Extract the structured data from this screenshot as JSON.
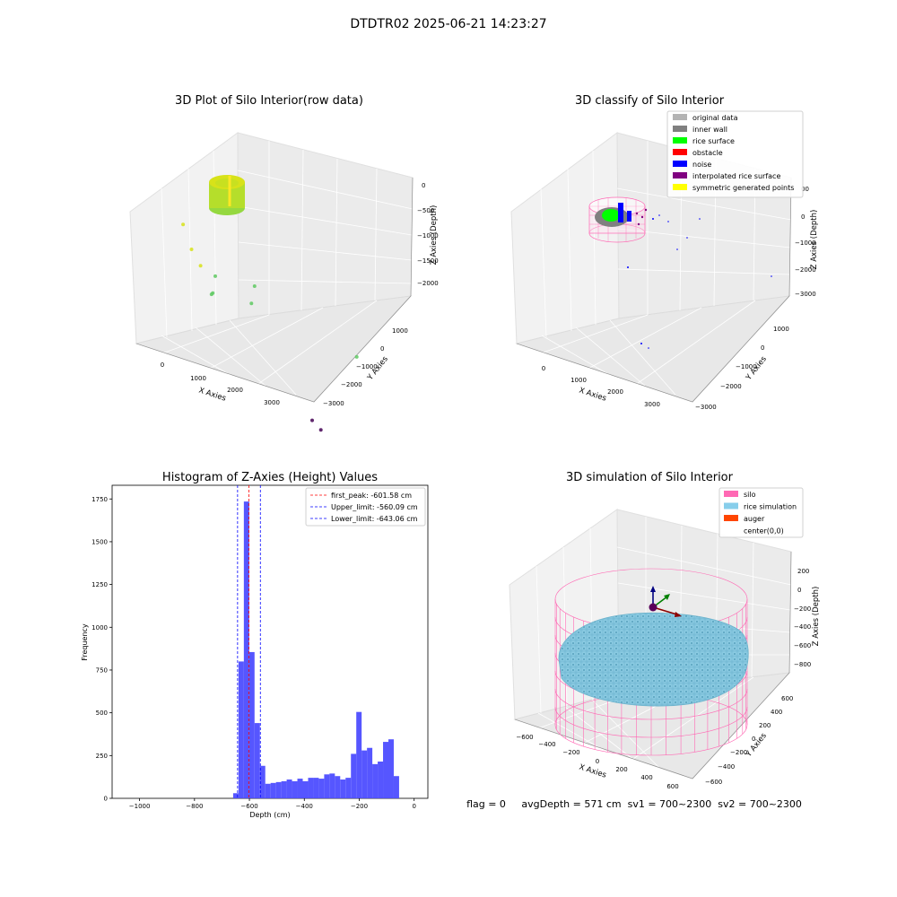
{
  "figure_title": "DTDTR02 2025-06-21 14:23:27",
  "status_line": "flag = 0     avgDepth = 571 cm  sv1 = 700~2300  sv2 = 700~2300",
  "chart_data": [
    {
      "type": "scatter3d",
      "title": "3D Plot of Silo Interior(row data)",
      "xlabel": "X Axies",
      "ylabel": "Y Axies",
      "zlabel": "Z Axies (Depth)",
      "x_ticks": [
        "0",
        "1000",
        "2000",
        "3000"
      ],
      "y_ticks": [
        "1000",
        "0",
        "−1000",
        "−2000",
        "−3000"
      ],
      "z_ticks": [
        "0",
        "−500",
        "−1000",
        "−1500",
        "−2000"
      ],
      "colormap": "viridis",
      "colors": {
        "high": "#d7e219",
        "mid": "#5ec962",
        "low": "#440154"
      },
      "points": [
        {
          "x": 300,
          "y": 400,
          "z": -380
        },
        {
          "x": 480,
          "y": 350,
          "z": -650
        },
        {
          "x": 560,
          "y": 100,
          "z": -900
        },
        {
          "x": 780,
          "y": -150,
          "z": -1050
        },
        {
          "x": 1550,
          "y": -500,
          "z": -1100
        },
        {
          "x": 600,
          "y": -300,
          "z": -1350
        },
        {
          "x": 400,
          "y": -700,
          "z": -1500
        },
        {
          "x": 1300,
          "y": -800,
          "z": -1450
        },
        {
          "x": 3100,
          "y": -2200,
          "z": -2100
        },
        {
          "x": 2400,
          "y": -1500,
          "z": -2800
        },
        {
          "x": 2500,
          "y": -1700,
          "z": -2950
        }
      ]
    },
    {
      "type": "scatter3d",
      "title": "3D classify of Silo Interior",
      "xlabel": "X Axies",
      "ylabel": "Y Axies",
      "zlabel": "Z Axies (Depth)",
      "x_ticks": [
        "0",
        "1000",
        "2000",
        "3000"
      ],
      "y_ticks": [
        "1000",
        "0",
        "−1000",
        "−2000",
        "−3000"
      ],
      "z_ticks": [
        "0",
        "−1000",
        "−2000",
        "−3000"
      ],
      "z_top_tick": "00",
      "legend": [
        {
          "label": "original data",
          "color": "#b3b3b3"
        },
        {
          "label": "inner wall",
          "color": "#808080"
        },
        {
          "label": "rice surface",
          "color": "#00ff00"
        },
        {
          "label": "obstacle",
          "color": "#ff0000"
        },
        {
          "label": "noise",
          "color": "#0000ff"
        },
        {
          "label": "interpolated rice surface",
          "color": "#800080"
        },
        {
          "label": "symmetric generated points",
          "color": "#ffff00"
        }
      ]
    },
    {
      "type": "bar",
      "title": "Histogram of Z-Axies (Height) Values",
      "xlabel": "Depth (cm)",
      "ylabel": "Frequency",
      "xlim": [
        -1100,
        50
      ],
      "ylim": [
        0,
        1830
      ],
      "x_ticks": [
        -1000,
        -800,
        -600,
        -400,
        -200,
        0
      ],
      "y_ticks": [
        0,
        250,
        500,
        750,
        1000,
        1250,
        1500,
        1750
      ],
      "bar_color": "#4d4dff",
      "bin_width": 19.5,
      "bin_centers": [
        -649.5,
        -630,
        -610.5,
        -591,
        -571.5,
        -552,
        -532.5,
        -513,
        -493.5,
        -474,
        -454.5,
        -435,
        -415.5,
        -396,
        -376.5,
        -357,
        -337.5,
        -318,
        -298.5,
        -279,
        -259.5,
        -240,
        -220.5,
        -201,
        -181.5,
        -162,
        -142.5,
        -123,
        -103.5,
        -84,
        -64.5,
        -45,
        -25.5,
        -6
      ],
      "values": [
        30,
        800,
        1735,
        855,
        440,
        190,
        85,
        90,
        95,
        100,
        110,
        100,
        115,
        100,
        120,
        120,
        115,
        140,
        145,
        130,
        110,
        120,
        260,
        505,
        280,
        295,
        200,
        215,
        330,
        345,
        130,
        0,
        0,
        0
      ],
      "vlines": [
        {
          "x": -601.58,
          "label": "first_peak: -601.58 cm",
          "color": "#ff0000"
        },
        {
          "x": -560.09,
          "label": "Upper_limit: -560.09 cm",
          "color": "#0000ff"
        },
        {
          "x": -643.06,
          "label": "Lower_limit: -643.06 cm",
          "color": "#0000ff"
        }
      ]
    },
    {
      "type": "surface3d",
      "title": "3D simulation of Silo Interior",
      "xlabel": "X Axies",
      "ylabel": "Y Axies",
      "zlabel": "Z Axies (Depth)",
      "x_ticks": [
        "−600",
        "−400",
        "−200",
        "0",
        "200",
        "400",
        "600"
      ],
      "y_ticks": [
        "600",
        "400",
        "200",
        "0",
        "−200",
        "−400",
        "−600"
      ],
      "z_ticks": [
        "200",
        "0",
        "−200",
        "−400",
        "−600",
        "−800"
      ],
      "legend": [
        {
          "label": "silo",
          "color": "#ff69b4"
        },
        {
          "label": "rice simulation",
          "color": "#87ceeb"
        },
        {
          "label": "auger",
          "color": "#ff4500"
        },
        {
          "label": "center(0,0)",
          "color": "#ffffff"
        }
      ]
    }
  ]
}
